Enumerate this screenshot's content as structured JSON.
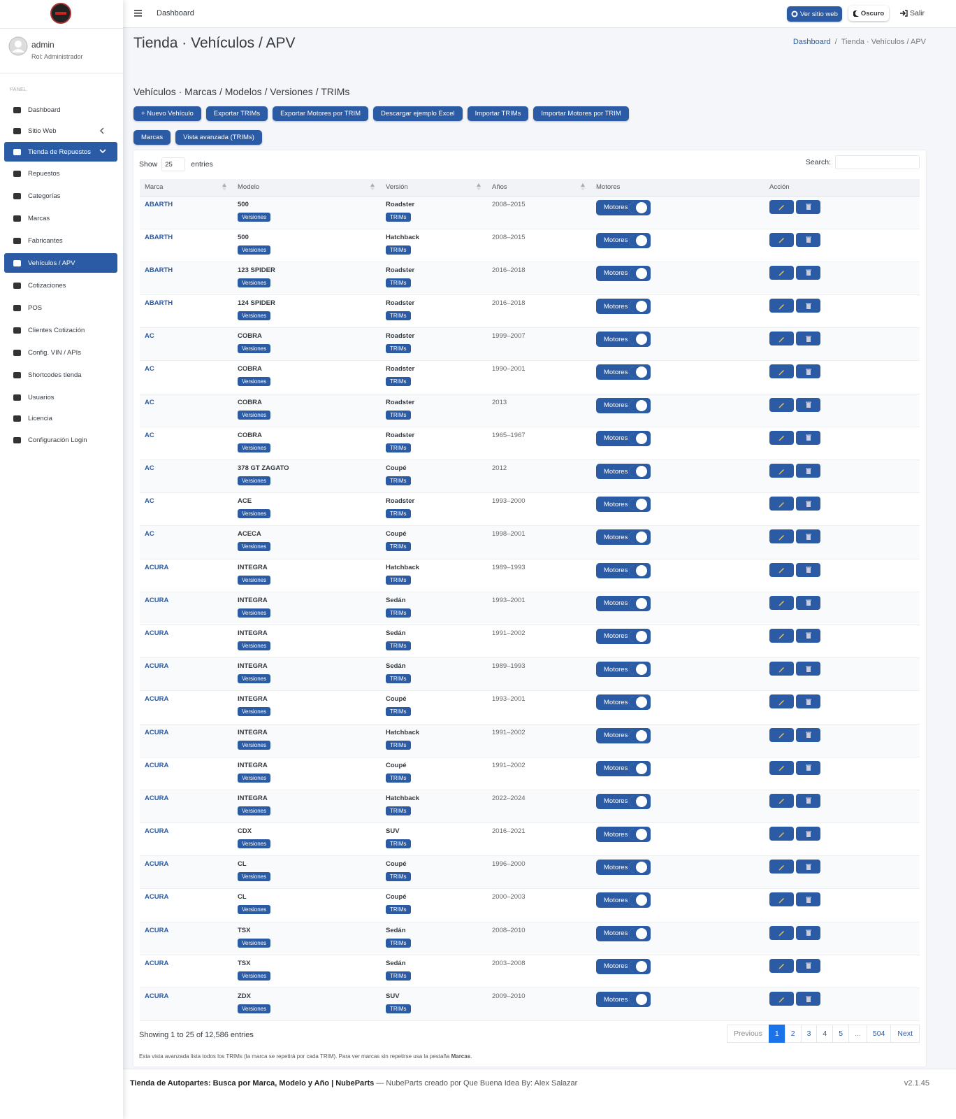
{
  "sidebar": {
    "user": {
      "name": "admin",
      "role": "Rol: Administrador"
    },
    "section": "PANEL",
    "menu": [
      {
        "label": "Dashboard"
      },
      {
        "label": "Sitio Web"
      },
      {
        "label": "Tienda de Repuestos",
        "active": true
      },
      {
        "label": "Repuestos"
      },
      {
        "label": "Categorías"
      },
      {
        "label": "Marcas"
      },
      {
        "label": "Fabricantes"
      },
      {
        "label": "Vehículos / APV",
        "active": true
      },
      {
        "label": "Cotizaciones"
      },
      {
        "label": "POS"
      },
      {
        "label": "Clientes Cotización"
      },
      {
        "label": "Config. VIN / APIs"
      },
      {
        "label": "Shortcodes tienda"
      },
      {
        "label": "Usuarios"
      },
      {
        "label": "Licencia"
      },
      {
        "label": "Configuración Login"
      }
    ]
  },
  "topbar": {
    "crumb": "Dashboard",
    "site_button": "Ver sitio web",
    "theme_button": "Oscuro",
    "logout": "Salir"
  },
  "page": {
    "title": "Tienda · Vehículos / APV",
    "breadcrumb": {
      "items": [
        "Dashboard",
        "Tienda · Vehículos / APV"
      ],
      "separator": "/"
    }
  },
  "card": {
    "subtitle": "Vehículos · Marcas / Modelos / Versiones / TRIMs",
    "buttons": [
      "+ Nuevo Vehículo",
      "Exportar TRIMs",
      "Exportar Motores por TRIM",
      "Descargar ejemplo Excel",
      "Importar TRIMs",
      "Importar Motores por TRIM"
    ],
    "tabs": [
      "Marcas",
      "Vista avanzada (TRIMs)"
    ],
    "length": {
      "show": "Show",
      "value": "25",
      "entries": "entries"
    },
    "search": "Search:"
  },
  "table": {
    "headers": [
      "Marca",
      "Modelo",
      "Versión",
      "Años",
      "Motores",
      "Acción"
    ],
    "version_badge": "Versiones",
    "trim_badge": "TRIMs",
    "engines_badge": "Motores",
    "rows": [
      [
        "ABARTH",
        "500",
        "Roadster",
        "2008–2015"
      ],
      [
        "ABARTH",
        "500",
        "Hatchback",
        "2008–2015"
      ],
      [
        "ABARTH",
        "123 SPIDER",
        "Roadster",
        "2016–2018"
      ],
      [
        "ABARTH",
        "124 SPIDER",
        "Roadster",
        "2016–2018"
      ],
      [
        "AC",
        "COBRA",
        "Roadster",
        "1999–2007"
      ],
      [
        "AC",
        "COBRA",
        "Roadster",
        "1990–2001"
      ],
      [
        "AC",
        "COBRA",
        "Roadster",
        "2013"
      ],
      [
        "AC",
        "COBRA",
        "Roadster",
        "1965–1967"
      ],
      [
        "AC",
        "378 GT ZAGATO",
        "Coupé",
        "2012"
      ],
      [
        "AC",
        "ACE",
        "Roadster",
        "1993–2000"
      ],
      [
        "AC",
        "ACECA",
        "Coupé",
        "1998–2001"
      ],
      [
        "ACURA",
        "INTEGRA",
        "Hatchback",
        "1989–1993"
      ],
      [
        "ACURA",
        "INTEGRA",
        "Sedán",
        "1993–2001"
      ],
      [
        "ACURA",
        "INTEGRA",
        "Sedán",
        "1991–2002"
      ],
      [
        "ACURA",
        "INTEGRA",
        "Sedán",
        "1989–1993"
      ],
      [
        "ACURA",
        "INTEGRA",
        "Coupé",
        "1993–2001"
      ],
      [
        "ACURA",
        "INTEGRA",
        "Hatchback",
        "1991–2002"
      ],
      [
        "ACURA",
        "INTEGRA",
        "Coupé",
        "1991–2002"
      ],
      [
        "ACURA",
        "INTEGRA",
        "Hatchback",
        "2022–2024"
      ],
      [
        "ACURA",
        "CDX",
        "SUV",
        "2016–2021"
      ],
      [
        "ACURA",
        "CL",
        "Coupé",
        "1996–2000"
      ],
      [
        "ACURA",
        "CL",
        "Coupé",
        "2000–2003"
      ],
      [
        "ACURA",
        "TSX",
        "Sedán",
        "2008–2010"
      ],
      [
        "ACURA",
        "TSX",
        "Sedán",
        "2003–2008"
      ],
      [
        "ACURA",
        "ZDX",
        "SUV",
        "2009–2010"
      ]
    ],
    "info": "Showing 1 to 25 of 12,586 entries",
    "pagination": [
      "Previous",
      "1",
      "2",
      "3",
      "4",
      "5",
      "...",
      "504",
      "Next"
    ],
    "current_page": "1"
  },
  "note": {
    "text": "Esta vista avanzada lista todos los TRIMs (la marca se repetirá por cada TRIM). Para ver marcas sin repetirse usa la pestaña",
    "link": "Marcas",
    "end": "."
  },
  "footer": {
    "brand": "Tienda de Autopartes: Busca por Marca, Modelo y Año | NubeParts",
    "credit": "— NubeParts creado por Que Buena Idea By: Alex Salazar",
    "version": "v2.1.45"
  }
}
